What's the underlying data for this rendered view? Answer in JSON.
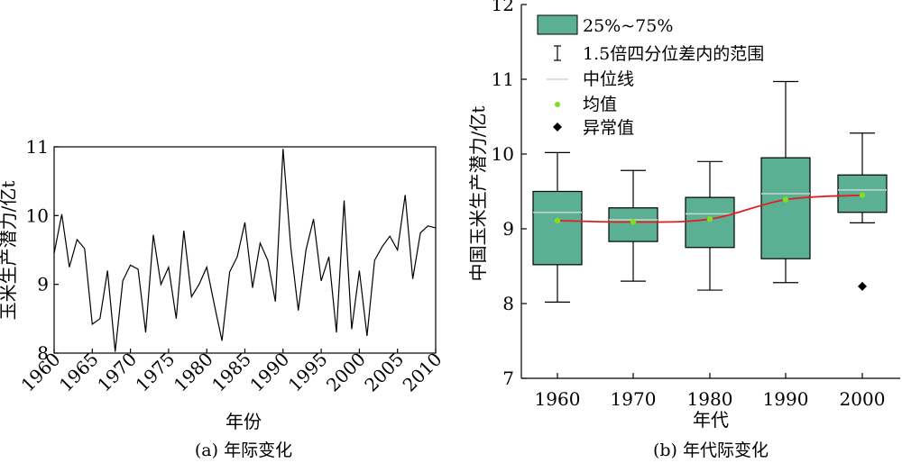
{
  "colors": {
    "box_fill": "#5bb094",
    "median": "#c8d8d0",
    "mean_line": "#e02020",
    "mean_point": "#7fe020",
    "line": "#000000"
  },
  "chart_data": [
    {
      "type": "line",
      "caption": "(a) 年际变化",
      "xlabel": "年份",
      "ylabel": "玉米生产潜力/亿t",
      "xlim": [
        1960,
        2010
      ],
      "ylim": [
        8,
        11
      ],
      "xticks": [
        1960,
        1965,
        1970,
        1975,
        1980,
        1985,
        1990,
        1995,
        2000,
        2005,
        2010
      ],
      "yticks": [
        8,
        9,
        10,
        11
      ],
      "x": [
        1960,
        1961,
        1962,
        1963,
        1964,
        1965,
        1966,
        1967,
        1968,
        1969,
        1970,
        1971,
        1972,
        1973,
        1974,
        1975,
        1976,
        1977,
        1978,
        1979,
        1980,
        1981,
        1982,
        1983,
        1984,
        1985,
        1986,
        1987,
        1988,
        1989,
        1990,
        1991,
        1992,
        1993,
        1994,
        1995,
        1996,
        1997,
        1998,
        1999,
        2000,
        2001,
        2002,
        2003,
        2004,
        2005,
        2006,
        2007,
        2008,
        2009,
        2010
      ],
      "y": [
        9.45,
        10.02,
        9.25,
        9.65,
        9.52,
        8.42,
        8.5,
        9.2,
        8.02,
        9.05,
        9.28,
        9.22,
        8.3,
        9.72,
        9.0,
        9.25,
        8.5,
        9.78,
        8.82,
        9.0,
        9.25,
        8.7,
        8.18,
        9.18,
        9.4,
        9.9,
        8.95,
        9.6,
        9.35,
        8.75,
        10.97,
        9.55,
        8.62,
        9.5,
        9.95,
        9.05,
        9.4,
        8.3,
        10.22,
        8.35,
        9.2,
        8.25,
        9.35,
        9.55,
        9.7,
        9.5,
        10.3,
        9.08,
        9.75,
        9.85,
        9.82
      ]
    },
    {
      "type": "box",
      "caption": "(b) 年代际变化",
      "xlabel": "年代",
      "ylabel": "中国玉米生产潜力/亿t",
      "ylim": [
        7,
        12
      ],
      "yticks": [
        7,
        8,
        9,
        10,
        11,
        12
      ],
      "categories": [
        "1960",
        "1970",
        "1980",
        "1990",
        "2000"
      ],
      "boxes": [
        {
          "whisker_low": 8.02,
          "q1": 8.52,
          "median": 9.22,
          "q3": 9.5,
          "whisker_high": 10.02,
          "mean": 9.11
        },
        {
          "whisker_low": 8.3,
          "q1": 8.83,
          "median": 9.12,
          "q3": 9.28,
          "whisker_high": 9.78,
          "mean": 9.09
        },
        {
          "whisker_low": 8.18,
          "q1": 8.75,
          "median": 9.2,
          "q3": 9.42,
          "whisker_high": 9.9,
          "mean": 9.13
        },
        {
          "whisker_low": 8.28,
          "q1": 8.6,
          "median": 9.47,
          "q3": 9.95,
          "whisker_high": 10.97,
          "mean": 9.39
        },
        {
          "whisker_low": 9.08,
          "q1": 9.22,
          "median": 9.52,
          "q3": 9.72,
          "whisker_high": 10.28,
          "mean": 9.45
        }
      ],
      "outliers": [
        {
          "category": "2000",
          "value": 8.23
        }
      ],
      "legend": {
        "position": "top-left",
        "items": [
          {
            "symbol": "box",
            "label": "25%~75%"
          },
          {
            "symbol": "whisker",
            "label": "1.5倍四分位差内的范围"
          },
          {
            "symbol": "median",
            "label": "中位线"
          },
          {
            "symbol": "mean",
            "label": "均值"
          },
          {
            "symbol": "outlier",
            "label": "异常值"
          }
        ]
      }
    }
  ]
}
